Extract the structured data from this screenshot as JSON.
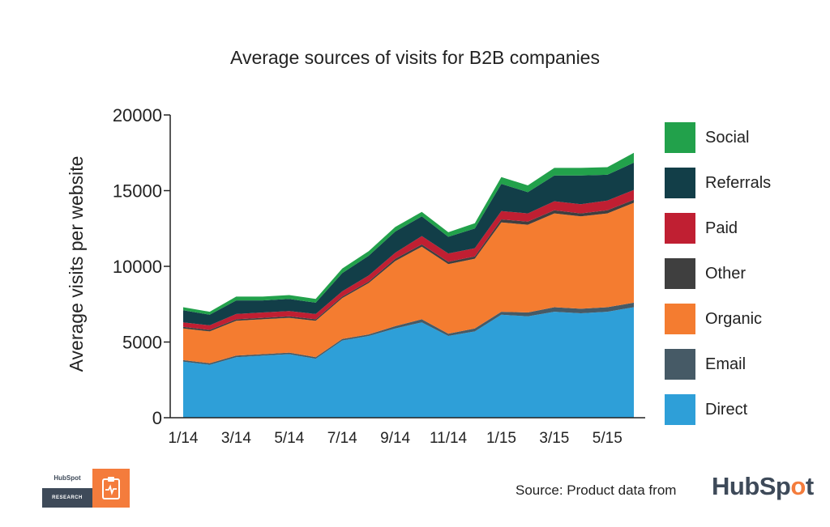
{
  "colors": {
    "Direct": "#2e9fd8",
    "Email": "#465a66",
    "Organic": "#f47c30",
    "Other": "#3f3f3f",
    "Paid": "#c01f32",
    "Referrals": "#123e48",
    "Social": "#22a14b"
  },
  "chart_data": {
    "type": "area",
    "stacked": true,
    "title": "Average sources of visits for B2B companies",
    "xlabel": "",
    "ylabel": "Average visits per website",
    "ylim": [
      0,
      20000
    ],
    "yticks": [
      0,
      5000,
      10000,
      15000,
      20000
    ],
    "ytick_labels": [
      "0",
      "5000",
      "10000",
      "15000",
      "20000"
    ],
    "x": [
      "1/14",
      "2/14",
      "3/14",
      "4/14",
      "5/14",
      "6/14",
      "7/14",
      "8/14",
      "9/14",
      "10/14",
      "11/14",
      "12/14",
      "1/15",
      "2/15",
      "3/15",
      "4/15",
      "5/15",
      "6/15"
    ],
    "xtick_labels": [
      "1/14",
      "3/14",
      "5/14",
      "7/14",
      "9/14",
      "11/14",
      "1/15",
      "3/15",
      "5/15"
    ],
    "xtick_indices": [
      0,
      2,
      4,
      6,
      8,
      10,
      12,
      14,
      16
    ],
    "legend_position": "right",
    "series": [
      {
        "name": "Direct",
        "values": [
          3700,
          3500,
          4000,
          4100,
          4200,
          3900,
          5100,
          5400,
          5900,
          6300,
          5400,
          5700,
          6800,
          6700,
          7000,
          6900,
          7000,
          7300
        ]
      },
      {
        "name": "Email",
        "values": [
          100,
          100,
          100,
          100,
          100,
          100,
          100,
          100,
          150,
          200,
          150,
          200,
          200,
          250,
          300,
          300,
          300,
          300
        ]
      },
      {
        "name": "Organic",
        "values": [
          2100,
          2100,
          2300,
          2300,
          2300,
          2400,
          2700,
          3400,
          4300,
          4800,
          4600,
          4600,
          5900,
          5800,
          6200,
          6100,
          6200,
          6600
        ]
      },
      {
        "name": "Other",
        "values": [
          100,
          100,
          100,
          100,
          100,
          100,
          100,
          100,
          150,
          150,
          150,
          150,
          200,
          200,
          200,
          200,
          200,
          200
        ]
      },
      {
        "name": "Paid",
        "values": [
          300,
          300,
          350,
          350,
          350,
          350,
          350,
          400,
          400,
          550,
          550,
          550,
          550,
          550,
          600,
          600,
          650,
          650
        ]
      },
      {
        "name": "Referrals",
        "values": [
          800,
          700,
          900,
          800,
          800,
          750,
          1200,
          1300,
          1400,
          1300,
          1100,
          1300,
          1800,
          1400,
          1700,
          1900,
          1700,
          1800
        ]
      },
      {
        "name": "Social",
        "values": [
          200,
          200,
          250,
          250,
          250,
          250,
          300,
          300,
          300,
          300,
          300,
          350,
          450,
          450,
          500,
          500,
          500,
          650
        ]
      }
    ],
    "legend_order": [
      "Social",
      "Referrals",
      "Paid",
      "Other",
      "Organic",
      "Email",
      "Direct"
    ]
  },
  "footer": {
    "source_text": "Source: Product data from",
    "logo_left": "HubSp",
    "logo_spot": "o",
    "logo_right": "t",
    "badge_top": "HubSpot",
    "badge_bottom": "RESEARCH"
  }
}
